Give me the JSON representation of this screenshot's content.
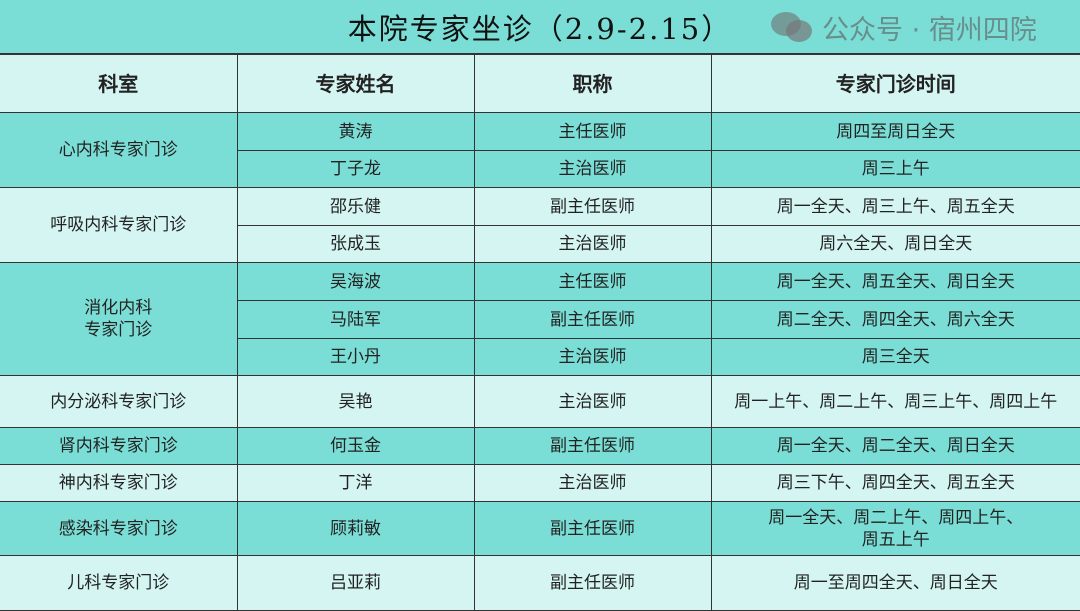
{
  "title": "本院专家坐诊（2.9-2.15）",
  "headers": [
    "科室",
    "专家姓名",
    "职称",
    "专家门诊时间"
  ],
  "groups": [
    {
      "dept": "心内科专家门诊",
      "rows": [
        [
          "黄涛",
          "主任医师",
          "周四至周日全天"
        ],
        [
          "丁子龙",
          "主治医师",
          "周三上午"
        ]
      ]
    },
    {
      "dept": "呼吸内科专家门诊",
      "rows": [
        [
          "邵乐健",
          "副主任医师",
          "周一全天、周三上午、周五全天"
        ],
        [
          "张成玉",
          "主治医师",
          "周六全天、周日全天"
        ]
      ]
    },
    {
      "dept": "消化内科\n专家门诊",
      "rows": [
        [
          "吴海波",
          "主任医师",
          "周一全天、周五全天、周日全天"
        ],
        [
          "马陆军",
          "副主任医师",
          "周二全天、周四全天、周六全天"
        ],
        [
          "王小丹",
          "主治医师",
          "周三全天"
        ]
      ]
    },
    {
      "dept": "内分泌科专家门诊",
      "rows": [
        [
          "吴艳",
          "主治医师",
          "周一上午、周二上午、周三上午、周四上午"
        ]
      ]
    },
    {
      "dept": "肾内科专家门诊",
      "rows": [
        [
          "何玉金",
          "副主任医师",
          "周一全天、周二全天、周日全天"
        ]
      ]
    },
    {
      "dept": "神内科专家门诊",
      "rows": [
        [
          "丁洋",
          "主治医师",
          "周三下午、周四全天、周五全天"
        ]
      ]
    },
    {
      "dept": "感染科专家门诊",
      "rows": [
        [
          "顾莉敏",
          "副主任医师",
          "周一全天、周二上午、周四上午、\n周五上午"
        ]
      ]
    },
    {
      "dept": "儿科专家门诊",
      "rows": [
        [
          "吕亚莉",
          "副主任医师",
          "周一至周四全天、周日全天"
        ]
      ]
    }
  ],
  "watermark": "公众号 · 宿州四院",
  "colors": {
    "dark": "#7bded6",
    "light": "#d4f5f2"
  }
}
